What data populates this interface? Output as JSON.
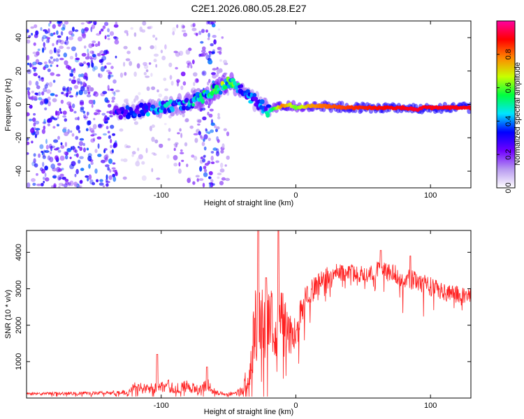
{
  "chart_data": [
    {
      "type": "heatmap",
      "title": "C2E1.2026.080.05.28.E27",
      "xlabel": "Height of straight line (km)",
      "ylabel": "Frequency (Hz)",
      "xlim": [
        -200,
        130
      ],
      "ylim": [
        -50,
        50
      ],
      "xticks": [
        -100,
        0,
        100
      ],
      "yticks": [
        -40,
        -20,
        0,
        20,
        40
      ],
      "colorbar": {
        "label": "Normalized spectral amplitude",
        "range": [
          0,
          1
        ],
        "ticks": [
          "0.0",
          "0.2",
          "0.4",
          "0.6",
          "0.8"
        ],
        "colors": [
          "#ffffff",
          "#b89af0",
          "#7000ff",
          "#0000ff",
          "#00e5ff",
          "#00ff40",
          "#c8ff00",
          "#ff8800",
          "#ff0000",
          "#ff00a0"
        ]
      },
      "ridge_x": [
        -135,
        -120,
        -110,
        -100,
        -90,
        -80,
        -72,
        -65,
        -58,
        -52,
        -48,
        -44,
        -40,
        -35,
        -30,
        -25,
        -20,
        -15,
        -10,
        -5,
        0,
        10,
        20,
        40,
        60,
        80,
        90,
        95,
        100,
        110,
        120,
        130
      ],
      "ridge_y": [
        -5,
        -4,
        -3,
        -2,
        -1,
        1,
        3,
        6,
        9,
        12,
        13,
        10,
        8,
        5,
        2,
        -1,
        -4,
        -2,
        -1,
        0,
        -2,
        -1,
        -1,
        -2,
        -2,
        -2,
        -3,
        -2,
        -2,
        -2,
        -2,
        -2
      ],
      "ridge_amplitude": [
        0.3,
        0.35,
        0.4,
        0.42,
        0.44,
        0.45,
        0.5,
        0.55,
        0.58,
        0.6,
        0.62,
        0.5,
        0.45,
        0.4,
        0.35,
        0.4,
        0.45,
        0.6,
        0.8,
        0.7,
        0.6,
        0.75,
        0.8,
        0.85,
        0.88,
        0.9,
        0.92,
        0.9,
        0.9,
        0.9,
        0.9,
        0.9
      ],
      "noise_bands": [
        {
          "x": [
            -200,
            -133
          ],
          "density": 0.9,
          "amplitude": 0.3
        },
        {
          "x": [
            -133,
            -90
          ],
          "density": 0.25,
          "amplitude": 0.12
        },
        {
          "x": [
            -90,
            -72
          ],
          "density": 0.45,
          "amplitude": 0.18
        },
        {
          "x": [
            -72,
            -58
          ],
          "density": 0.9,
          "amplitude": 0.3
        },
        {
          "x": [
            -58,
            -50
          ],
          "density": 0.5,
          "amplitude": 0.15
        }
      ]
    },
    {
      "type": "line",
      "xlabel": "Height of straight line (km)",
      "ylabel": "SNR (10 * v/v)",
      "xlim": [
        -200,
        130
      ],
      "ylim": [
        0,
        4600
      ],
      "xticks": [
        -100,
        0,
        100
      ],
      "yticks": [
        1000,
        2000,
        3000,
        4000
      ],
      "series": [
        {
          "name": "SNR",
          "color": "#ff2020",
          "trend_x": [
            -200,
            -150,
            -125,
            -120,
            -110,
            -95,
            -90,
            -80,
            -72,
            -65,
            -60,
            -52,
            -45,
            -40,
            -35,
            -32,
            -30,
            -28,
            -26,
            -24,
            -20,
            -15,
            -10,
            -5,
            0,
            5,
            10,
            15,
            20,
            30,
            40,
            50,
            60,
            70,
            80,
            90,
            100,
            110,
            120,
            130
          ],
          "trend_y": [
            120,
            130,
            150,
            320,
            260,
            330,
            260,
            330,
            220,
            380,
            150,
            120,
            120,
            180,
            600,
            1500,
            2300,
            1400,
            2600,
            1800,
            2300,
            1900,
            2300,
            1600,
            1900,
            2500,
            2800,
            3100,
            3300,
            3450,
            3450,
            3400,
            3500,
            3450,
            3300,
            3200,
            3050,
            2900,
            2850,
            2800
          ],
          "noise_y": [
            60,
            80,
            120,
            220,
            220,
            300,
            250,
            280,
            200,
            300,
            150,
            80,
            100,
            300,
            800,
            1500,
            1800,
            1700,
            1800,
            1600,
            1500,
            1400,
            1300,
            1100,
            1000,
            800,
            600,
            500,
            450,
            420,
            420,
            420,
            420,
            420,
            450,
            450,
            450,
            400,
            400,
            350
          ],
          "peaks": [
            {
              "x": -103,
              "y": 1200
            },
            {
              "x": -66,
              "y": 850
            },
            {
              "x": -28,
              "y": 4600
            },
            {
              "x": -13,
              "y": 4600
            },
            {
              "x": -22,
              "y": 3300
            },
            {
              "x": 63,
              "y": 4050
            },
            {
              "x": 85,
              "y": 3900
            }
          ]
        }
      ]
    }
  ]
}
